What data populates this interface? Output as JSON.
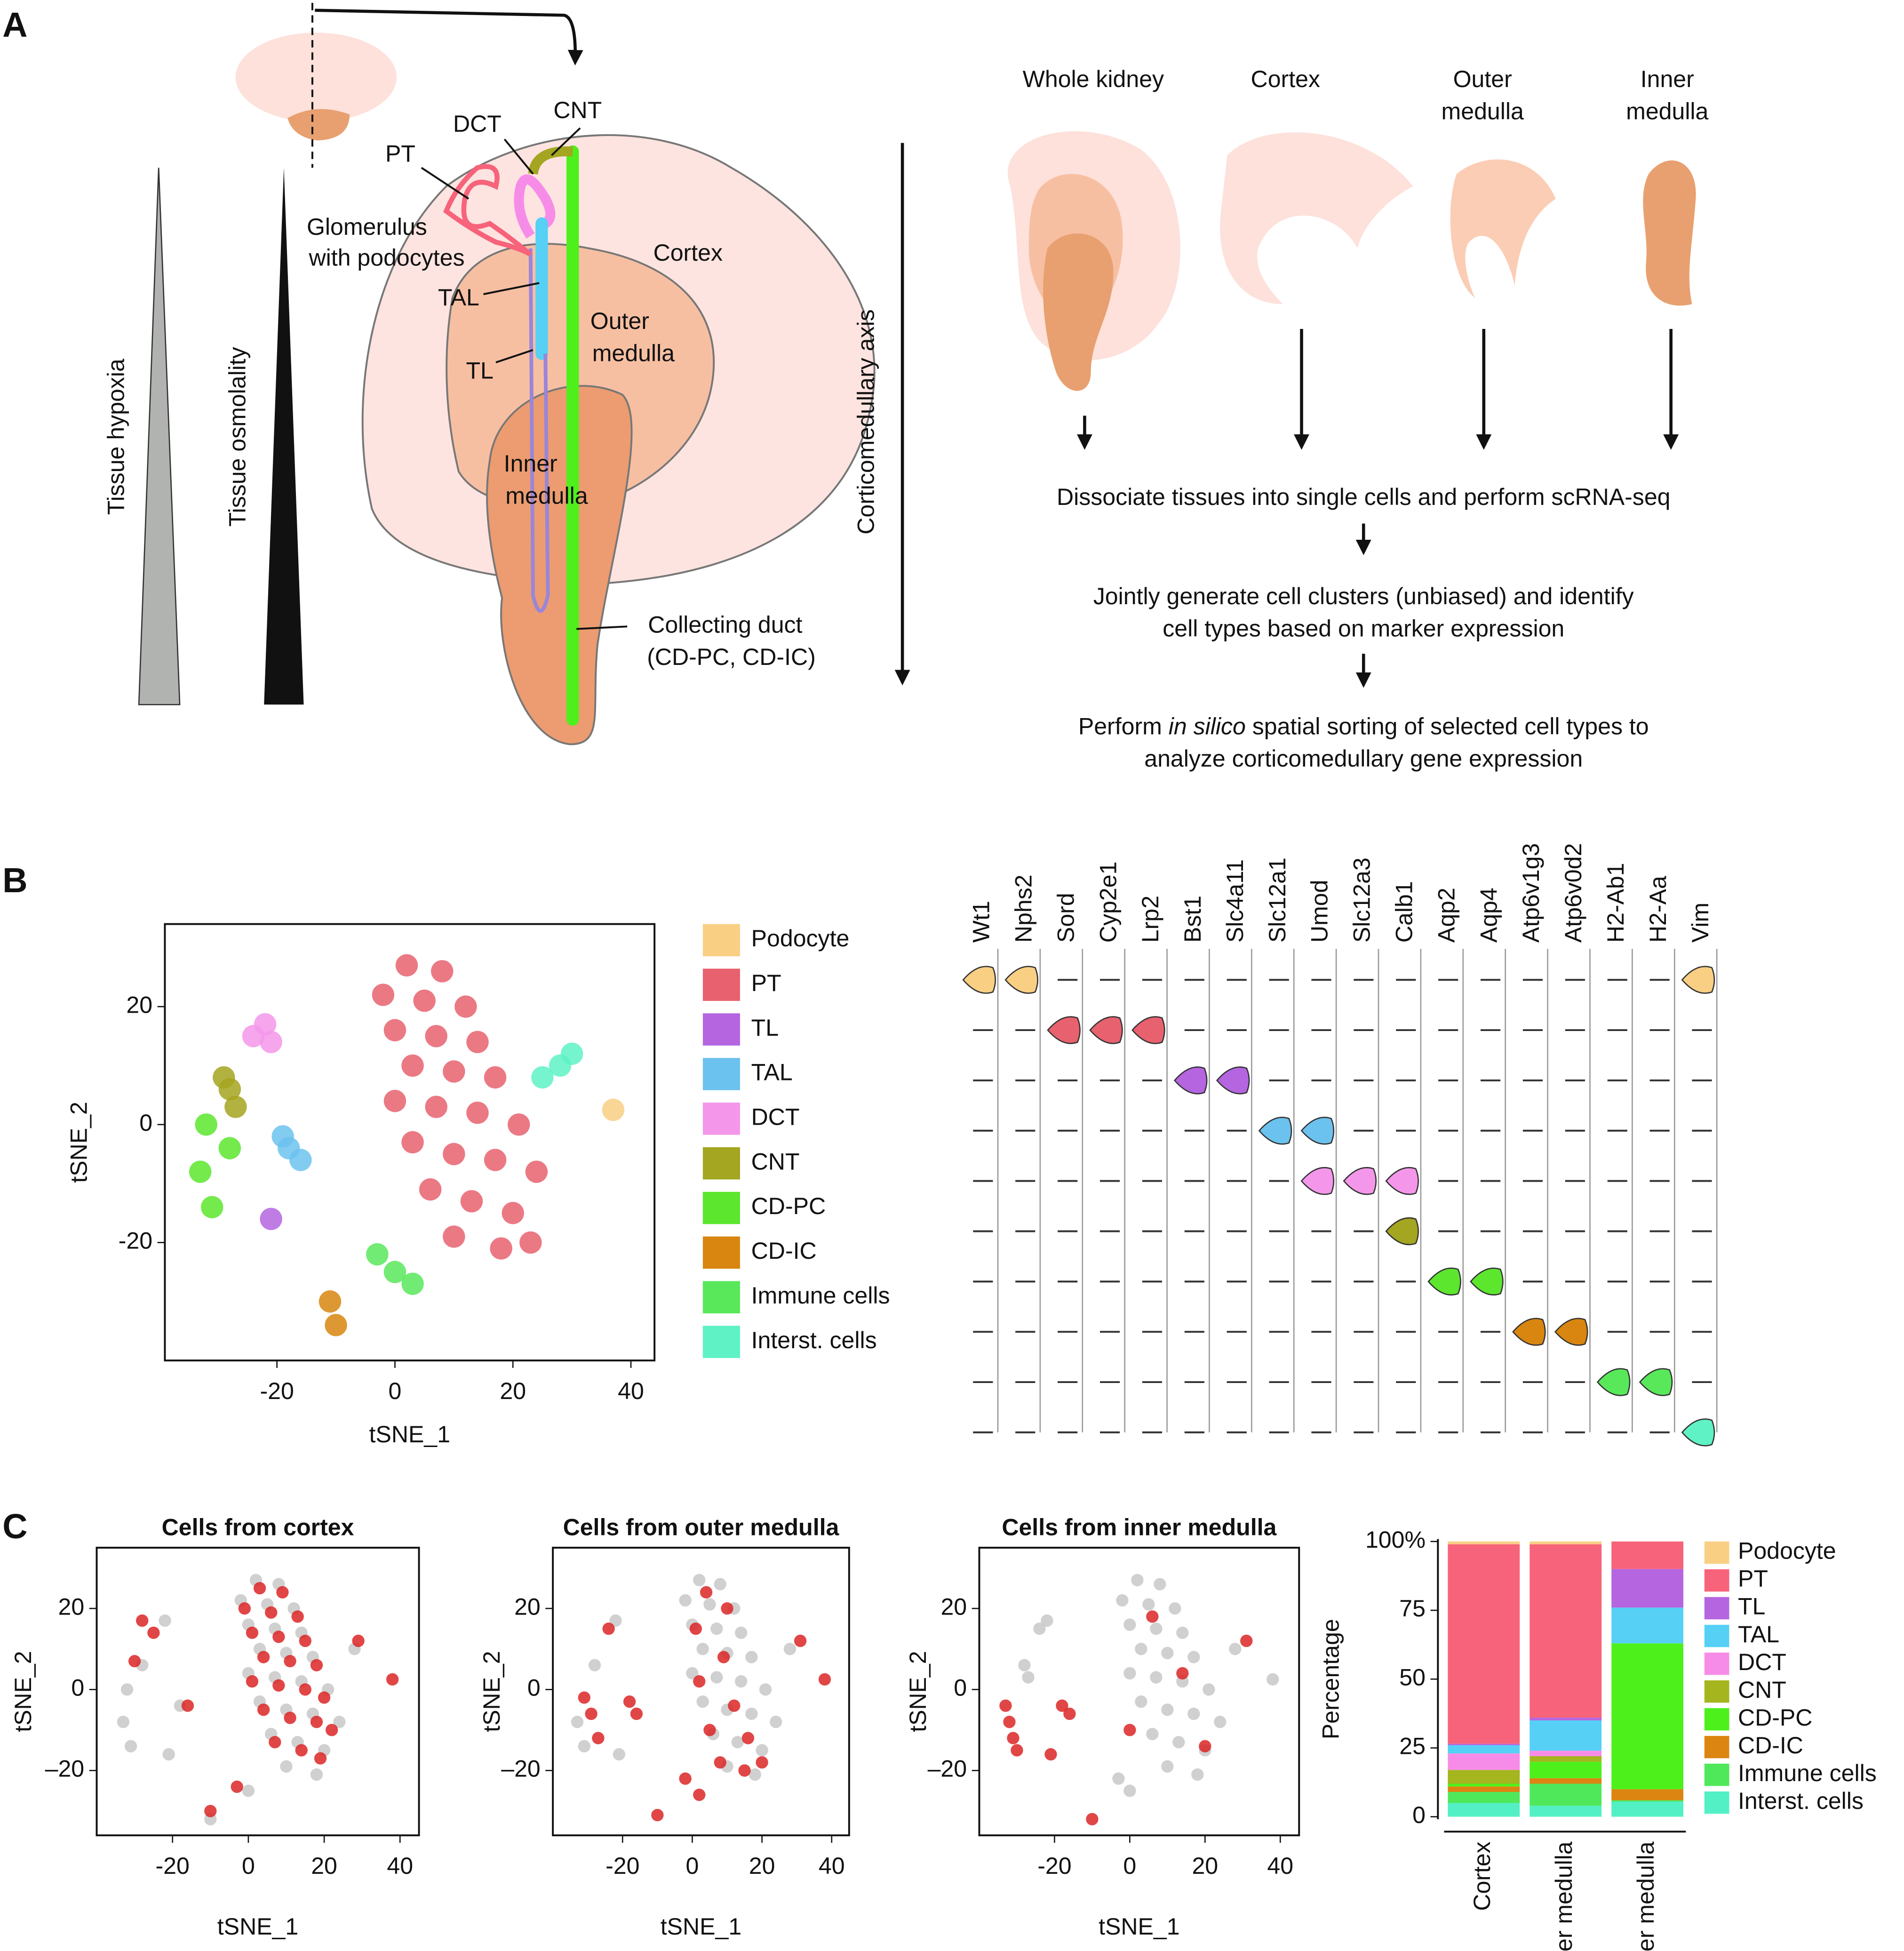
{
  "figure": {
    "panel_labels": [
      "A",
      "B",
      "C"
    ],
    "diagram": {
      "pt": "PT",
      "dct": "DCT",
      "cnt": "CNT",
      "glomerulus": [
        "Glomerulus",
        "with podocytes"
      ],
      "tal": "TAL",
      "tl": "TL",
      "cortex": "Cortex",
      "outer_medulla": [
        "Outer",
        "medulla"
      ],
      "inner_medulla": [
        "Inner",
        "medulla"
      ],
      "collecting_duct": [
        "Collecting duct",
        "(CD-PC, CD-IC)"
      ],
      "hypoxia": "Tissue hypoxia",
      "osmolality": "Tissue osmolality",
      "axis": "Corticomedullary axis"
    },
    "samples": {
      "whole": "Whole kidney",
      "cortex": "Cortex",
      "outer": [
        "Outer",
        "medulla"
      ],
      "inner": [
        "Inner",
        "medulla"
      ]
    },
    "steps": {
      "step1": "Dissociate tissues into single cells and perform scRNA-seq",
      "step2": [
        "Jointly generate cell clusters (unbiased) and identify",
        "cell types based on marker expression"
      ],
      "step3": [
        "Perform ",
        "in silico",
        " spatial sorting of selected cell types to",
        "analyze corticomedullary gene expression"
      ]
    }
  },
  "chart_data": [
    {
      "type": "scatter",
      "x_label": "tSNE_1",
      "y_label": "tSNE_2",
      "xlim": [
        -39,
        44
      ],
      "ylim": [
        -40,
        34
      ],
      "xticks": [
        -20,
        0,
        20,
        40
      ],
      "yticks": [
        -20,
        0,
        20
      ],
      "series": [
        {
          "name": "Podocyte",
          "color": "#f9cf84",
          "x": [
            37
          ],
          "values": [
            2.5
          ]
        },
        {
          "name": "PT",
          "color": "#e8616e",
          "x": [
            2,
            8,
            -2,
            5,
            12,
            0,
            7,
            14,
            3,
            10,
            17,
            0,
            7,
            14,
            21,
            3,
            10,
            17,
            24,
            6,
            13,
            20,
            10,
            18,
            23
          ],
          "values": [
            27,
            26,
            22,
            21,
            20,
            16,
            15,
            14,
            10,
            9,
            8,
            4,
            3,
            2,
            0,
            -3,
            -5,
            -6,
            -8,
            -11,
            -13,
            -15,
            -19,
            -21,
            -20
          ]
        },
        {
          "name": "TL",
          "color": "#b565e0",
          "x": [
            -21
          ],
          "values": [
            -16
          ]
        },
        {
          "name": "TAL",
          "color": "#6cc2ee",
          "x": [
            -18,
            -16,
            -19
          ],
          "values": [
            -4,
            -6,
            -2
          ]
        },
        {
          "name": "DCT",
          "color": "#f497ea",
          "x": [
            -22,
            -24,
            -21
          ],
          "values": [
            17,
            15,
            14
          ]
        },
        {
          "name": "CNT",
          "color": "#a4a520",
          "x": [
            -28,
            -27,
            -29
          ],
          "values": [
            6,
            3,
            8
          ]
        },
        {
          "name": "CD-PC",
          "color": "#5ce62e",
          "x": [
            -32,
            -33,
            -31,
            -28
          ],
          "values": [
            0,
            -8,
            -14,
            -4
          ]
        },
        {
          "name": "CD-IC",
          "color": "#d8860f",
          "x": [
            -11,
            -10
          ],
          "values": [
            -30,
            -34
          ]
        },
        {
          "name": "Immune cells",
          "color": "#58e85a",
          "x": [
            -3,
            0,
            3
          ],
          "values": [
            -22,
            -25,
            -27
          ]
        },
        {
          "name": "Interst. cells",
          "color": "#5ef2c5",
          "x": [
            30,
            28,
            25
          ],
          "values": [
            12,
            10,
            8
          ]
        }
      ]
    },
    {
      "type": "violin",
      "categories": [
        "Wt1",
        "Nphs2",
        "Sord",
        "Cyp2e1",
        "Lrp2",
        "Bst1",
        "Slc4a11",
        "Slc12a1",
        "Umod",
        "Slc12a3",
        "Calb1",
        "Aqp2",
        "Aqp4",
        "Atp6v1g3",
        "Atp6v0d2",
        "H2-Ab1",
        "H2-Aa",
        "Vim"
      ],
      "series": [
        {
          "color": "#f9cf84",
          "values": [
            1,
            1,
            0,
            0,
            0,
            0,
            0,
            0,
            0,
            0,
            0,
            0,
            0,
            0,
            0,
            0,
            0,
            1
          ]
        },
        {
          "color": "#e8616e",
          "values": [
            0,
            0,
            1,
            1,
            1,
            0,
            0,
            0,
            0,
            0,
            0,
            0,
            0,
            0,
            0,
            0,
            0,
            0
          ]
        },
        {
          "color": "#b565e0",
          "values": [
            0,
            0,
            0,
            0,
            0,
            1,
            1,
            0,
            0,
            0,
            0,
            0,
            0,
            0,
            0,
            0,
            0,
            0
          ]
        },
        {
          "color": "#6cc2ee",
          "values": [
            0,
            0,
            0,
            0,
            0,
            0,
            0,
            1,
            1,
            0,
            0,
            0,
            0,
            0,
            0,
            0,
            0,
            0
          ]
        },
        {
          "color": "#f497ea",
          "values": [
            0,
            0,
            0,
            0,
            0,
            0,
            0,
            0,
            1,
            1,
            1,
            0,
            0,
            0,
            0,
            0,
            0,
            0
          ]
        },
        {
          "color": "#a4a520",
          "values": [
            0,
            0,
            0,
            0,
            0,
            0,
            0,
            0,
            0,
            0,
            1,
            0,
            0,
            0,
            0,
            0,
            0,
            0
          ]
        },
        {
          "color": "#5ce62e",
          "values": [
            0,
            0,
            0,
            0,
            0,
            0,
            0,
            0,
            0,
            0,
            0,
            1,
            1,
            0,
            0,
            0,
            0,
            0
          ]
        },
        {
          "color": "#d8860f",
          "values": [
            0,
            0,
            0,
            0,
            0,
            0,
            0,
            0,
            0,
            0,
            0,
            0,
            0,
            1,
            1,
            0,
            0,
            0
          ]
        },
        {
          "color": "#58e85a",
          "values": [
            0,
            0,
            0,
            0,
            0,
            0,
            0,
            0,
            0,
            0,
            0,
            0,
            0,
            0,
            0,
            1,
            1,
            0
          ]
        },
        {
          "color": "#5ef2c5",
          "values": [
            0,
            0,
            0,
            0,
            0,
            0,
            0,
            0,
            0,
            0,
            0,
            0,
            0,
            0,
            0,
            0,
            0,
            1
          ]
        }
      ]
    },
    {
      "type": "scatter",
      "title": "Cells from cortex",
      "x_label": "tSNE_1",
      "y_label": "tSNE_2",
      "xlim": [
        -40,
        45
      ],
      "ylim": [
        -36,
        35
      ],
      "xticks": [
        -20,
        0,
        20,
        40
      ],
      "yticks": [
        {
          "value": -20,
          "label": "–20"
        },
        0,
        20
      ],
      "series": [
        {
          "color": "#c8c8c8",
          "x": [
            2,
            8,
            -2,
            5,
            12,
            0,
            7,
            14,
            3,
            10,
            17,
            0,
            7,
            14,
            21,
            3,
            10,
            17,
            24,
            6,
            13,
            20,
            10,
            18,
            -21,
            -18,
            -22,
            -28,
            -32,
            -33,
            -31,
            -10,
            0,
            28
          ],
          "values": [
            27,
            26,
            22,
            21,
            20,
            16,
            15,
            14,
            10,
            9,
            8,
            4,
            3,
            2,
            0,
            -3,
            -5,
            -6,
            -8,
            -11,
            -13,
            -15,
            -19,
            -21,
            -16,
            -4,
            17,
            6,
            0,
            -8,
            -14,
            -32,
            -25,
            10
          ]
        },
        {
          "color": "#dc2626",
          "x": [
            3,
            9,
            -1,
            6,
            13,
            1,
            8,
            15,
            4,
            11,
            18,
            1,
            8,
            15,
            20,
            4,
            11,
            18,
            22,
            7,
            14,
            19,
            -28,
            -25,
            -30,
            -16,
            -10,
            -3,
            29,
            38
          ],
          "values": [
            25,
            24,
            20,
            19,
            18,
            14,
            13,
            12,
            8,
            7,
            6,
            2,
            1,
            0,
            -2,
            -5,
            -7,
            -8,
            -10,
            -13,
            -15,
            -17,
            17,
            14,
            7,
            -4,
            -30,
            -24,
            12,
            2.5
          ]
        }
      ]
    },
    {
      "type": "scatter",
      "title": "Cells from outer medulla",
      "x_label": "tSNE_1",
      "y_label": "tSNE_2",
      "xlim": [
        -40,
        45
      ],
      "ylim": [
        -36,
        35
      ],
      "xticks": [
        -20,
        0,
        20,
        40
      ],
      "yticks": [
        {
          "value": -20,
          "label": "–20"
        },
        0,
        20
      ],
      "series": [
        {
          "color": "#c8c8c8",
          "x": [
            2,
            8,
            -2,
            5,
            12,
            0,
            7,
            14,
            3,
            10,
            17,
            0,
            7,
            14,
            21,
            3,
            10,
            17,
            24,
            6,
            13,
            20,
            10,
            18,
            -21,
            -22,
            -28,
            -33,
            -31,
            28
          ],
          "values": [
            27,
            26,
            22,
            21,
            20,
            16,
            15,
            14,
            10,
            9,
            8,
            4,
            3,
            2,
            0,
            -3,
            -5,
            -6,
            -8,
            -11,
            -13,
            -15,
            -19,
            -21,
            -16,
            17,
            6,
            -8,
            -14,
            10
          ]
        },
        {
          "color": "#dc2626",
          "x": [
            4,
            10,
            1,
            9,
            2,
            12,
            5,
            16,
            8,
            15,
            -18,
            -16,
            -31,
            -29,
            -27,
            -24,
            -10,
            -2,
            2,
            20,
            31,
            38
          ],
          "values": [
            24,
            20,
            15,
            8,
            2,
            -4,
            -10,
            -12,
            -18,
            -20,
            -3,
            -6,
            -2,
            -6,
            -12,
            15,
            -31,
            -22,
            -26,
            -18,
            12,
            2.5
          ]
        }
      ]
    },
    {
      "type": "scatter",
      "title": "Cells from inner medulla",
      "x_label": "tSNE_1",
      "y_label": "tSNE_2",
      "xlim": [
        -40,
        45
      ],
      "ylim": [
        -36,
        35
      ],
      "xticks": [
        -20,
        0,
        20,
        40
      ],
      "yticks": [
        {
          "value": -20,
          "label": "–20"
        },
        0,
        20
      ],
      "series": [
        {
          "color": "#c8c8c8",
          "x": [
            2,
            8,
            -2,
            5,
            12,
            0,
            7,
            14,
            3,
            10,
            17,
            0,
            7,
            14,
            21,
            3,
            10,
            17,
            24,
            6,
            13,
            20,
            10,
            18,
            -22,
            -24,
            -28,
            -27,
            -3,
            0,
            28,
            38
          ],
          "values": [
            27,
            26,
            22,
            21,
            20,
            16,
            15,
            14,
            10,
            9,
            8,
            4,
            3,
            2,
            0,
            -3,
            -5,
            -6,
            -8,
            -11,
            -13,
            -15,
            -19,
            -21,
            17,
            15,
            6,
            3,
            -22,
            -25,
            10,
            2.5
          ]
        },
        {
          "color": "#dc2626",
          "x": [
            -32,
            -31,
            -33,
            -30,
            -18,
            -16,
            -21,
            -10,
            6,
            14,
            0,
            20,
            31
          ],
          "values": [
            -8,
            -12,
            -4,
            -15,
            -4,
            -6,
            -16,
            -32,
            18,
            4,
            -10,
            -14,
            12
          ]
        }
      ]
    },
    {
      "type": "bar",
      "stacked": true,
      "y_label": "Percentage",
      "categories": [
        "Cortex",
        "Outer medulla",
        "Inner medulla"
      ],
      "ylim": [
        0,
        100
      ],
      "yticks": [
        0,
        25,
        50,
        75,
        {
          "value": 100,
          "label": "100%"
        }
      ],
      "series": [
        {
          "name": "Podocyte",
          "color": "#f9cf84",
          "values": [
            1,
            1,
            0
          ]
        },
        {
          "name": "PT",
          "color": "#f7637a",
          "values": [
            72.5,
            63,
            10
          ]
        },
        {
          "name": "TL",
          "color": "#b565e0",
          "values": [
            0.5,
            1,
            14
          ]
        },
        {
          "name": "TAL",
          "color": "#56d0f5",
          "values": [
            3,
            11,
            13
          ]
        },
        {
          "name": "DCT",
          "color": "#f78ce8",
          "values": [
            6,
            2,
            0
          ]
        },
        {
          "name": "CNT",
          "color": "#a4b51d",
          "values": [
            5,
            2,
            0
          ]
        },
        {
          "name": "CD-PC",
          "color": "#4ef01b",
          "values": [
            1,
            6,
            53
          ]
        },
        {
          "name": "CD-IC",
          "color": "#dc8510",
          "values": [
            2,
            2,
            4
          ]
        },
        {
          "name": "Immune cells",
          "color": "#4fe85a",
          "values": [
            4,
            8,
            0.5
          ]
        },
        {
          "name": "Interst. cells",
          "color": "#52f0c4",
          "values": [
            5,
            4,
            5.5
          ]
        }
      ]
    }
  ]
}
